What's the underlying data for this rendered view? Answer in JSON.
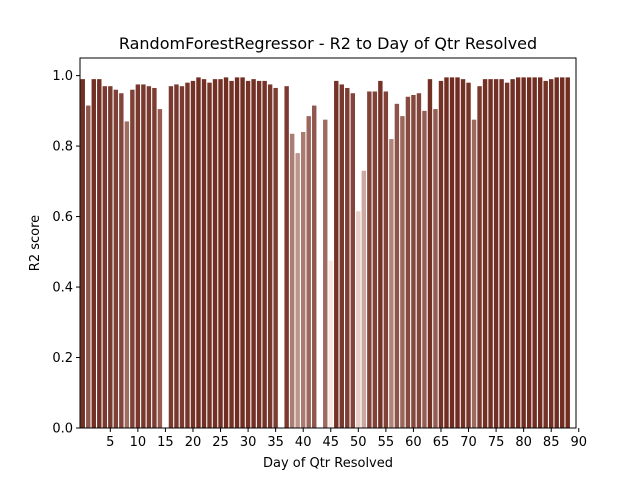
{
  "chart_data": {
    "type": "bar",
    "title": "RandomForestRegressor - R2 to Day of Qtr Resolved",
    "xlabel": "Day of Qtr Resolved",
    "ylabel": "R2 score",
    "xlim": [
      0,
      90
    ],
    "ylim": [
      0,
      1.05
    ],
    "xticks": [
      5,
      10,
      15,
      20,
      25,
      30,
      35,
      40,
      45,
      50,
      55,
      60,
      65,
      70,
      75,
      80,
      85,
      90
    ],
    "yticks": [
      0.0,
      0.2,
      0.4,
      0.6,
      0.8,
      1.0
    ],
    "ytick_labels": [
      "0.0",
      "0.2",
      "0.4",
      "0.6",
      "0.8",
      "1.0"
    ],
    "grid": false,
    "color_low": "#fbe9e2",
    "color_high": "#6f2a1f",
    "x": [
      0,
      1,
      2,
      3,
      4,
      5,
      6,
      7,
      8,
      9,
      10,
      11,
      12,
      13,
      14,
      15,
      16,
      17,
      18,
      19,
      20,
      21,
      22,
      23,
      24,
      25,
      26,
      27,
      28,
      29,
      30,
      31,
      32,
      33,
      34,
      35,
      36,
      37,
      38,
      39,
      40,
      41,
      42,
      43,
      44,
      45,
      46,
      47,
      48,
      49,
      50,
      51,
      52,
      53,
      54,
      55,
      56,
      57,
      58,
      59,
      60,
      61,
      62,
      63,
      64,
      65,
      66,
      67,
      68,
      69,
      70,
      71,
      72,
      73,
      74,
      75,
      76,
      77,
      78,
      79,
      80,
      81,
      82,
      83,
      84,
      85,
      86,
      87,
      88
    ],
    "values": [
      0.99,
      0.915,
      0.99,
      0.99,
      0.97,
      0.97,
      0.96,
      0.95,
      0.87,
      0.96,
      0.975,
      0.975,
      0.97,
      0.965,
      0.905,
      0.0,
      0.97,
      0.975,
      0.97,
      0.98,
      0.985,
      0.995,
      0.99,
      0.98,
      0.99,
      0.99,
      0.995,
      0.985,
      0.995,
      0.995,
      0.985,
      0.99,
      0.985,
      0.985,
      0.975,
      0.965,
      0.0,
      0.97,
      0.835,
      0.78,
      0.84,
      0.885,
      0.915,
      0.0,
      0.875,
      0.475,
      0.985,
      0.975,
      0.965,
      0.95,
      0.615,
      0.73,
      0.955,
      0.955,
      0.985,
      0.955,
      0.82,
      0.92,
      0.885,
      0.94,
      0.945,
      0.95,
      0.9,
      0.99,
      0.905,
      0.985,
      0.995,
      0.995,
      0.995,
      0.99,
      0.98,
      0.875,
      0.97,
      0.99,
      0.99,
      0.99,
      0.99,
      0.98,
      0.99,
      0.995,
      0.995,
      0.995,
      0.995,
      0.995,
      0.985,
      0.99,
      0.995,
      0.995,
      0.995
    ]
  }
}
